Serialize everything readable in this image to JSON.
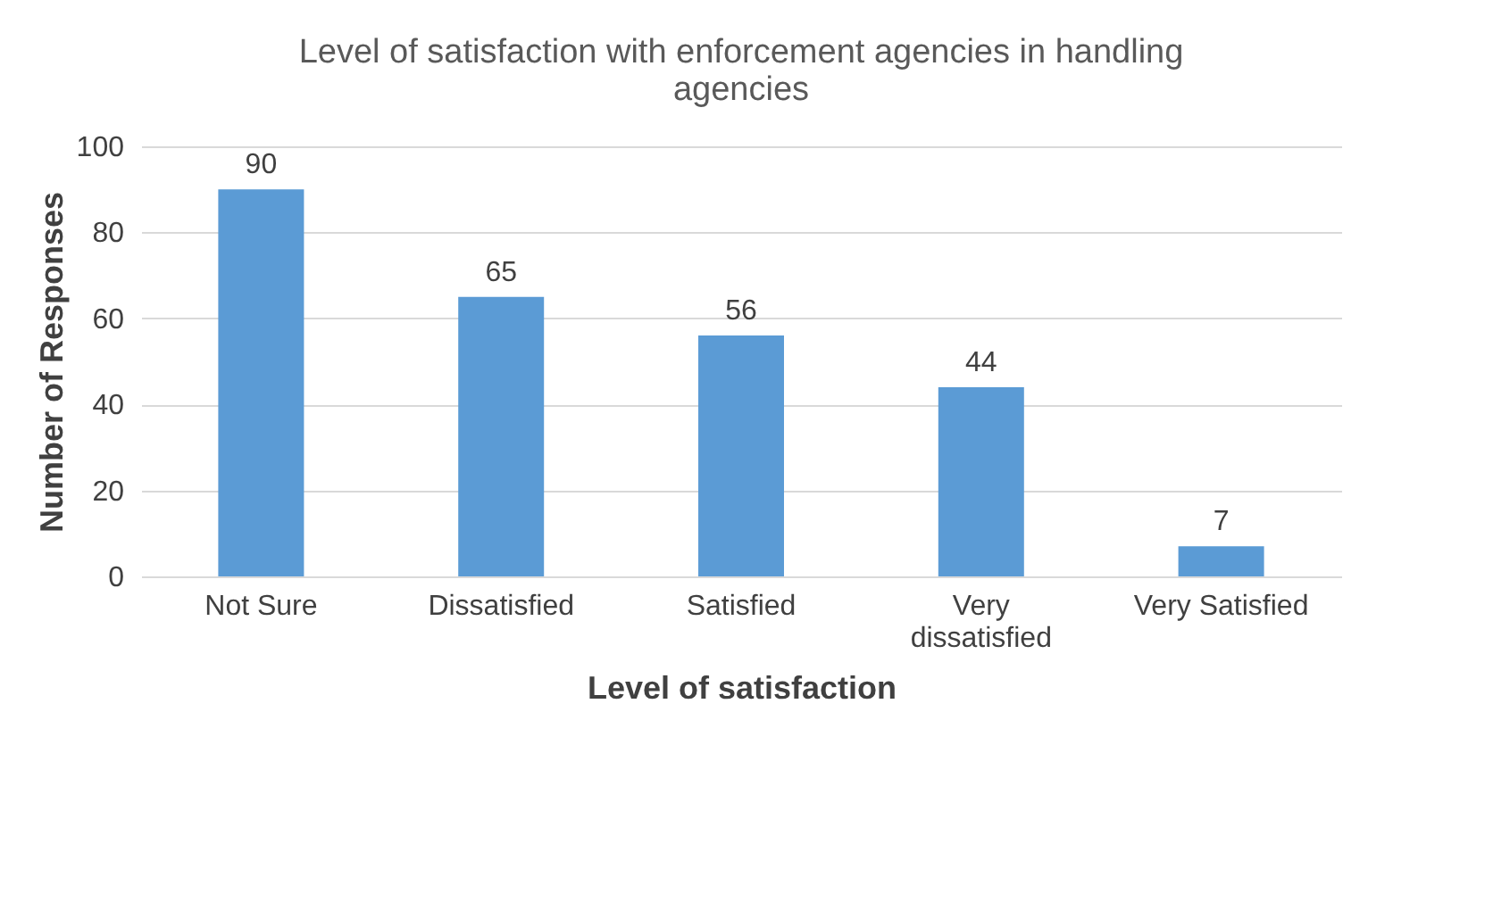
{
  "chart_data": {
    "type": "bar",
    "title": "Level of satisfaction with enforcement agencies in handling agencies",
    "xlabel": "Level of satisfaction",
    "ylabel": "Number of Responses",
    "categories": [
      "Not Sure",
      "Dissatisfied",
      "Satisfied",
      "Very dissatisfied",
      "Very Satisfied"
    ],
    "values": [
      90,
      65,
      56,
      44,
      7
    ],
    "color": "#5b9bd5",
    "ylim": [
      0,
      100
    ],
    "yticks": [
      0,
      20,
      40,
      60,
      80,
      100
    ],
    "grid": "y",
    "data_labels": true
  }
}
